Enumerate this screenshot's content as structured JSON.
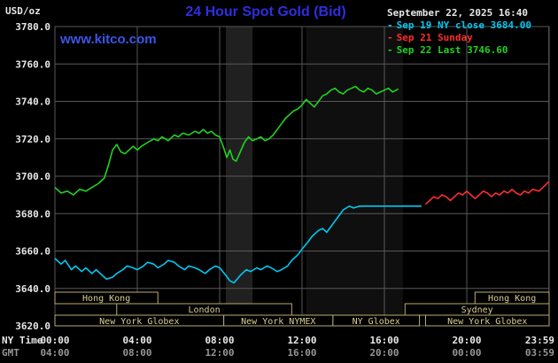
{
  "header": {
    "title": "24 Hour Spot Gold (Bid)",
    "watermark": "www.kitco.com",
    "datetime": "September 22, 2025 16:40"
  },
  "legend": {
    "items": [
      {
        "marker": "-",
        "label": "Sep 19 NY close 3684.00",
        "color": "#00c8f0"
      },
      {
        "marker": "-",
        "label": "Sep 21 Sunday",
        "color": "#ff2d2d"
      },
      {
        "marker": "-",
        "label": "Sep 22 Last 3746.60",
        "color": "#1fd41f"
      }
    ]
  },
  "colors": {
    "background": "#000000",
    "grid": "#585858",
    "title_blue": "#2e2ee0",
    "watermark_blue": "#3c55e8",
    "axis_text": "#e8e8e8",
    "gmt_text": "#969696",
    "session_text": "#d9cd96",
    "session_border": "#b9ac6f"
  },
  "chart_data": {
    "type": "line",
    "title": "24 Hour Spot Gold (Bid)",
    "y_axis": {
      "unit": "USD/oz",
      "range": [
        3620,
        3780
      ],
      "tick_step": 20,
      "ticks": [
        "3780.0",
        "3760.0",
        "3740.0",
        "3720.0",
        "3700.0",
        "3680.0",
        "3660.0",
        "3640.0",
        "3620.0"
      ]
    },
    "x_axis": {
      "range_hours": [
        0,
        24
      ],
      "tick_hours": [
        0,
        4,
        8,
        12,
        16,
        20,
        23.983
      ],
      "label_rows": [
        {
          "name": "NY Time",
          "ticks": [
            "00:00",
            "04:00",
            "08:00",
            "12:00",
            "16:00",
            "20:00",
            "23:59"
          ]
        },
        {
          "name": "GMT",
          "ticks": [
            "04:00",
            "08:00",
            "12:00",
            "16:00",
            "20:00",
            "00:00",
            "03:59"
          ]
        }
      ]
    },
    "bands": [
      {
        "start": 8.3,
        "end": 9.6,
        "color": "#202020"
      },
      {
        "start": 12.2,
        "end": 16.9,
        "color": "#0f0f0f"
      }
    ],
    "sessions": [
      {
        "label": "Hong Kong",
        "row": 0,
        "start": 0,
        "end": 5
      },
      {
        "label": "Hong Kong",
        "row": 0,
        "start": 20.4,
        "end": 24
      },
      {
        "label": "London",
        "row": 1,
        "start": 3,
        "end": 11.5
      },
      {
        "label": "Sydney",
        "row": 1,
        "start": 17,
        "end": 24
      },
      {
        "label": "New York Globex",
        "row": 2,
        "start": 0,
        "end": 8.2
      },
      {
        "label": "New York NYMEX",
        "row": 2,
        "start": 8.2,
        "end": 13.5
      },
      {
        "label": "NY Globex",
        "row": 2,
        "start": 13.5,
        "end": 17.7
      },
      {
        "label": "New York Globex",
        "row": 2,
        "start": 18,
        "end": 24
      }
    ],
    "series": [
      {
        "name": "Sep 19 NY close",
        "color": "#00c8f0",
        "points": [
          [
            0,
            3656
          ],
          [
            0.3,
            3653
          ],
          [
            0.5,
            3655
          ],
          [
            0.8,
            3650
          ],
          [
            1,
            3652
          ],
          [
            1.3,
            3649
          ],
          [
            1.5,
            3651
          ],
          [
            1.8,
            3648
          ],
          [
            2,
            3650
          ],
          [
            2.3,
            3647
          ],
          [
            2.5,
            3645
          ],
          [
            2.8,
            3646
          ],
          [
            3,
            3648
          ],
          [
            3.3,
            3650
          ],
          [
            3.5,
            3652
          ],
          [
            3.8,
            3651
          ],
          [
            4,
            3650
          ],
          [
            4.3,
            3652
          ],
          [
            4.5,
            3654
          ],
          [
            4.8,
            3653
          ],
          [
            5,
            3651
          ],
          [
            5.3,
            3653
          ],
          [
            5.5,
            3655
          ],
          [
            5.8,
            3654
          ],
          [
            6,
            3652
          ],
          [
            6.3,
            3650
          ],
          [
            6.5,
            3652
          ],
          [
            6.8,
            3651
          ],
          [
            7,
            3650
          ],
          [
            7.3,
            3648
          ],
          [
            7.5,
            3650
          ],
          [
            7.8,
            3652
          ],
          [
            8,
            3651
          ],
          [
            8.3,
            3647
          ],
          [
            8.5,
            3644
          ],
          [
            8.7,
            3643
          ],
          [
            9,
            3647
          ],
          [
            9.3,
            3650
          ],
          [
            9.5,
            3649
          ],
          [
            9.8,
            3651
          ],
          [
            10,
            3650
          ],
          [
            10.3,
            3652
          ],
          [
            10.5,
            3651
          ],
          [
            10.8,
            3649
          ],
          [
            11,
            3650
          ],
          [
            11.3,
            3652
          ],
          [
            11.5,
            3655
          ],
          [
            11.8,
            3658
          ],
          [
            12,
            3661
          ],
          [
            12.3,
            3665
          ],
          [
            12.5,
            3668
          ],
          [
            12.8,
            3671
          ],
          [
            13,
            3672
          ],
          [
            13.2,
            3670
          ],
          [
            13.4,
            3673
          ],
          [
            13.6,
            3676
          ],
          [
            13.8,
            3679
          ],
          [
            14,
            3682
          ],
          [
            14.3,
            3684
          ],
          [
            14.5,
            3683
          ],
          [
            14.8,
            3684
          ],
          [
            15,
            3684
          ],
          [
            15.5,
            3684
          ],
          [
            16,
            3684
          ],
          [
            16.5,
            3684
          ],
          [
            17,
            3684
          ],
          [
            17.5,
            3684
          ],
          [
            17.8,
            3684
          ]
        ]
      },
      {
        "name": "Sep 21 Sunday",
        "color": "#ff2d2d",
        "points": [
          [
            18,
            3685
          ],
          [
            18.2,
            3687
          ],
          [
            18.4,
            3689
          ],
          [
            18.6,
            3688
          ],
          [
            18.8,
            3690
          ],
          [
            19,
            3689
          ],
          [
            19.2,
            3687
          ],
          [
            19.4,
            3689
          ],
          [
            19.6,
            3691
          ],
          [
            19.8,
            3690
          ],
          [
            20,
            3692
          ],
          [
            20.2,
            3690
          ],
          [
            20.4,
            3688
          ],
          [
            20.6,
            3690
          ],
          [
            20.8,
            3692
          ],
          [
            21,
            3691
          ],
          [
            21.2,
            3689
          ],
          [
            21.4,
            3691
          ],
          [
            21.6,
            3690
          ],
          [
            21.8,
            3692
          ],
          [
            22,
            3691
          ],
          [
            22.2,
            3693
          ],
          [
            22.4,
            3691
          ],
          [
            22.6,
            3690
          ],
          [
            22.8,
            3692
          ],
          [
            23,
            3691
          ],
          [
            23.2,
            3693
          ],
          [
            23.5,
            3692
          ],
          [
            23.7,
            3694
          ],
          [
            23.983,
            3697
          ]
        ]
      },
      {
        "name": "Sep 22 Last",
        "color": "#1fd41f",
        "points": [
          [
            0,
            3694
          ],
          [
            0.3,
            3691
          ],
          [
            0.6,
            3692
          ],
          [
            0.9,
            3690
          ],
          [
            1.2,
            3693
          ],
          [
            1.5,
            3692
          ],
          [
            1.8,
            3694
          ],
          [
            2.1,
            3696
          ],
          [
            2.4,
            3699
          ],
          [
            2.6,
            3706
          ],
          [
            2.8,
            3714
          ],
          [
            3,
            3717
          ],
          [
            3.2,
            3713
          ],
          [
            3.4,
            3712
          ],
          [
            3.6,
            3714
          ],
          [
            3.8,
            3716
          ],
          [
            4,
            3714
          ],
          [
            4.2,
            3716
          ],
          [
            4.5,
            3718
          ],
          [
            4.8,
            3720
          ],
          [
            5,
            3719
          ],
          [
            5.2,
            3721
          ],
          [
            5.5,
            3719
          ],
          [
            5.8,
            3722
          ],
          [
            6,
            3721
          ],
          [
            6.2,
            3723
          ],
          [
            6.5,
            3722
          ],
          [
            6.8,
            3724
          ],
          [
            7,
            3723
          ],
          [
            7.2,
            3725
          ],
          [
            7.4,
            3723
          ],
          [
            7.6,
            3724
          ],
          [
            7.8,
            3722
          ],
          [
            8,
            3721
          ],
          [
            8.2,
            3715
          ],
          [
            8.35,
            3710
          ],
          [
            8.5,
            3714
          ],
          [
            8.65,
            3709
          ],
          [
            8.8,
            3708
          ],
          [
            9,
            3713
          ],
          [
            9.2,
            3718
          ],
          [
            9.4,
            3721
          ],
          [
            9.6,
            3719
          ],
          [
            9.8,
            3720
          ],
          [
            10,
            3721
          ],
          [
            10.2,
            3719
          ],
          [
            10.4,
            3720
          ],
          [
            10.6,
            3722
          ],
          [
            10.8,
            3725
          ],
          [
            11,
            3728
          ],
          [
            11.2,
            3731
          ],
          [
            11.4,
            3733
          ],
          [
            11.6,
            3735
          ],
          [
            11.8,
            3736
          ],
          [
            12,
            3738
          ],
          [
            12.2,
            3741
          ],
          [
            12.4,
            3739
          ],
          [
            12.6,
            3737
          ],
          [
            12.8,
            3740
          ],
          [
            13,
            3743
          ],
          [
            13.2,
            3744
          ],
          [
            13.4,
            3746
          ],
          [
            13.6,
            3747
          ],
          [
            13.8,
            3745
          ],
          [
            14,
            3744
          ],
          [
            14.2,
            3746
          ],
          [
            14.4,
            3747
          ],
          [
            14.6,
            3748
          ],
          [
            14.8,
            3746
          ],
          [
            15,
            3745
          ],
          [
            15.2,
            3747
          ],
          [
            15.4,
            3746
          ],
          [
            15.6,
            3744
          ],
          [
            15.8,
            3745
          ],
          [
            16,
            3746
          ],
          [
            16.2,
            3747
          ],
          [
            16.4,
            3745
          ],
          [
            16.67,
            3746.6
          ]
        ]
      }
    ]
  }
}
